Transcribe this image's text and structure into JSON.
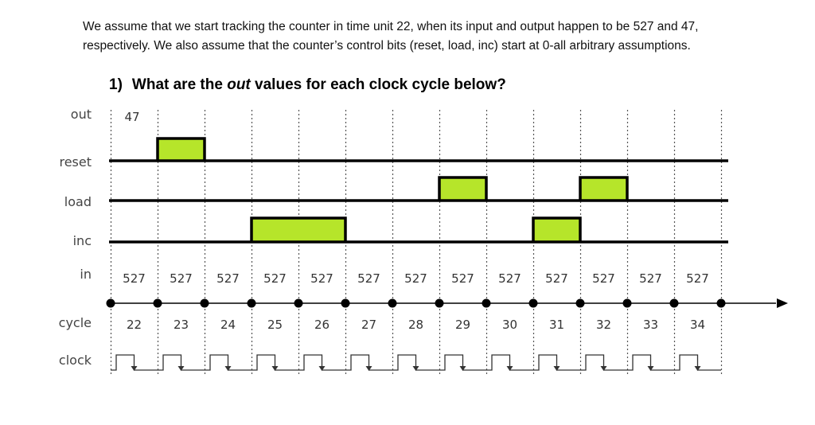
{
  "intro": {
    "line1": "We assume that we start tracking the counter in time unit 22, when its input and output happen to be 527 and 47,",
    "line2": "respectively.  We also assume that the counter’s control bits (reset, load, inc) start at 0-all arbitrary assumptions."
  },
  "question": {
    "number": "1)",
    "prefix": "What are the ",
    "emph": "out",
    "suffix": " values for each clock cycle below?"
  },
  "signals": {
    "out": "out",
    "reset": "reset",
    "load": "load",
    "inc": "inc",
    "in": "in",
    "cycle": "cycle",
    "clock": "clock"
  },
  "out_initial": "47",
  "in_values": [
    "527",
    "527",
    "527",
    "527",
    "527",
    "527",
    "527",
    "527",
    "527",
    "527",
    "527",
    "527",
    "527"
  ],
  "cycles": [
    "22",
    "23",
    "24",
    "25",
    "26",
    "27",
    "28",
    "29",
    "30",
    "31",
    "32",
    "33",
    "34"
  ],
  "pulses": {
    "reset": [
      1
    ],
    "load": [
      7,
      10
    ],
    "inc": [
      3,
      4,
      9
    ]
  },
  "colors": {
    "pulse_fill": "#b6e52a",
    "line": "#000000"
  }
}
